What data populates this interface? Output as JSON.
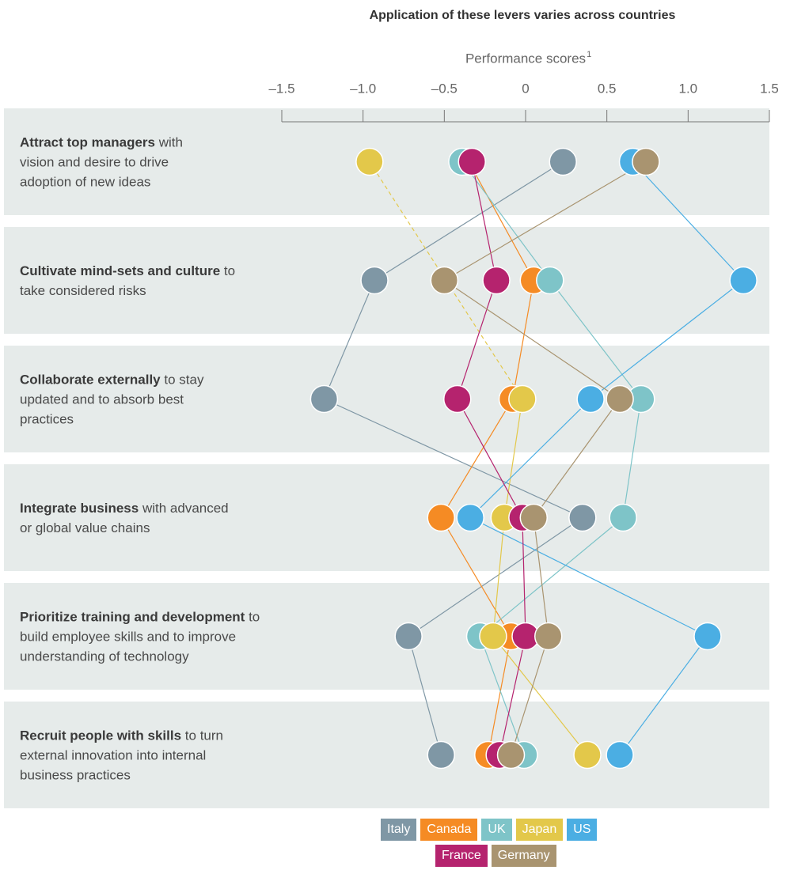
{
  "chart_data": {
    "type": "dot",
    "title": "Application of these levers varies across countries",
    "xlabel": "Performance scores",
    "xlabel_footnote": "1",
    "categories": [
      {
        "bold": "Attract top managers",
        "rest": "with vision and desire to drive adoption of new ideas"
      },
      {
        "bold": "Cultivate mind-sets and culture",
        "rest": "to take considered risks"
      },
      {
        "bold": "Collaborate externally",
        "rest": "to stay updated and to absorb best practices"
      },
      {
        "bold": "Integrate business",
        "rest": "with advanced or global value chains"
      },
      {
        "bold": "Prioritize training and development",
        "rest": "to build employee skills and to improve understanding of technology"
      },
      {
        "bold": "Recruit people with skills",
        "rest": "to turn external innovation into internal business practices"
      }
    ],
    "xlim": [
      -1.5,
      1.5
    ],
    "xticks": [
      {
        "value": -1.5,
        "label": "–1.5"
      },
      {
        "value": -1.0,
        "label": "–1.0"
      },
      {
        "value": -0.5,
        "label": "–0.5"
      },
      0,
      0.5,
      {
        "value": 1.0,
        "label": "1.0"
      },
      1.5
    ],
    "series": [
      {
        "name": "Italy",
        "color": "#7f97a5",
        "values": [
          0.23,
          -0.93,
          -1.24,
          0.35,
          -0.72,
          -0.52
        ]
      },
      {
        "name": "Canada",
        "color": "#f58b24",
        "values": [
          -0.35,
          0.05,
          -0.08,
          -0.52,
          -0.09,
          -0.23
        ]
      },
      {
        "name": "UK",
        "color": "#7ec4c8",
        "values": [
          -0.39,
          0.15,
          0.71,
          0.6,
          -0.28,
          -0.01
        ]
      },
      {
        "name": "Japan",
        "color": "#e3c84a",
        "values": [
          -0.96,
          null,
          -0.02,
          -0.13,
          -0.2,
          0.38
        ]
      },
      {
        "name": "US",
        "color": "#4baee3",
        "values": [
          0.66,
          1.34,
          0.4,
          -0.34,
          1.12,
          0.58
        ]
      },
      {
        "name": "France",
        "color": "#b5236e",
        "values": [
          -0.33,
          -0.18,
          -0.42,
          -0.02,
          0.0,
          -0.16
        ]
      },
      {
        "name": "Germany",
        "color": "#a99470",
        "values": [
          0.74,
          -0.5,
          0.58,
          0.05,
          0.14,
          -0.09
        ]
      }
    ]
  }
}
